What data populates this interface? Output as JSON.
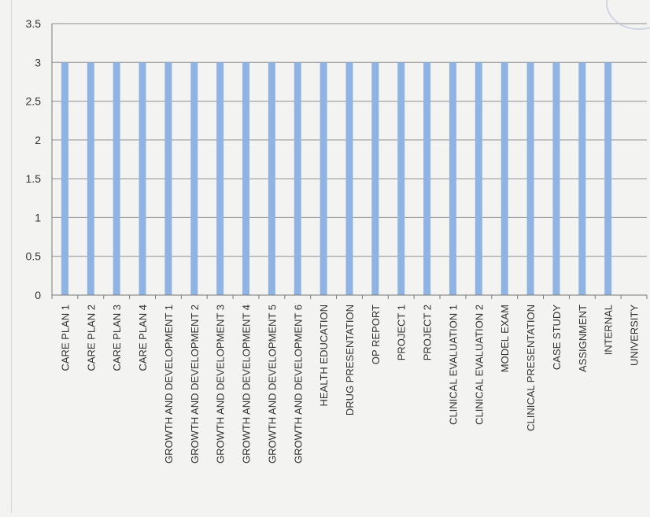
{
  "chart_data": {
    "type": "bar",
    "title": "",
    "xlabel": "",
    "ylabel": "",
    "ylim": [
      0,
      3.5
    ],
    "yticks": [
      "0",
      "0.5",
      "1",
      "1.5",
      "2",
      "2.5",
      "3",
      "3.5"
    ],
    "grid": true,
    "bar_color": "#8fb4e3",
    "categories": [
      "CARE PLAN 1",
      "CARE PLAN 2",
      "CARE PLAN 3",
      "CARE PLAN 4",
      "GROWTH AND DEVELOPMENT 1",
      "GROWTH AND DEVELOPMENT 2",
      "GROWTH AND DEVELOPMENT 3",
      "GROWTH AND DEVELOPMENT 4",
      "GROWTH AND DEVELOPMENT 5",
      "GROWTH AND DEVELOPMENT 6",
      "HEALTH EDUCATION",
      "DRUG PRESENTATION",
      "OP REPORT",
      "PROJECT 1",
      "PROJECT 2",
      "CLINICAL EVALUATION 1",
      "CLINICAL EVALUATION 2",
      "MODEL EXAM",
      "CLINICAL PRESENTATION",
      "CASE STUDY",
      "ASSIGNMENT",
      "INTERNAL",
      "UNIVERSITY"
    ],
    "values": [
      3,
      3,
      3,
      3,
      3,
      3,
      3,
      3,
      3,
      3,
      3,
      3,
      3,
      3,
      3,
      3,
      3,
      3,
      3,
      3,
      3,
      3,
      0
    ]
  }
}
